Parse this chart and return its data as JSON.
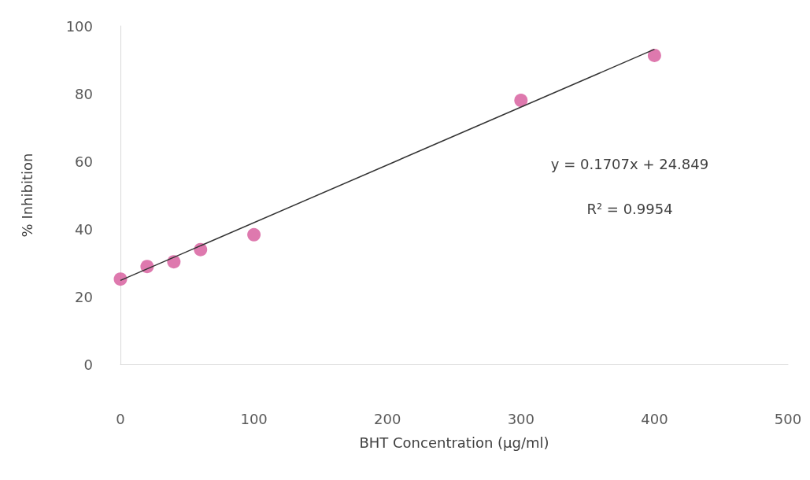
{
  "chart_data": {
    "type": "scatter",
    "xlabel": "BHT Concentration (µg/ml)",
    "ylabel": "% Inhibition",
    "annotations": [
      "y = 0.1707x + 24.849",
      "R² = 0.9954"
    ],
    "series": [
      {
        "color": "#d6589a",
        "x": [
          0,
          20,
          40,
          60,
          100,
          300,
          400
        ],
        "values": [
          25.2,
          28.9,
          30.3,
          33.9,
          38.3,
          78,
          91.3
        ],
        "marker": "circle"
      },
      {
        "type": "line",
        "color": "#333333",
        "x": [
          0,
          400
        ],
        "values": [
          24.8,
          93.1
        ],
        "marker": "none",
        "line_style": "solid"
      }
    ],
    "xlim": [
      0,
      500
    ],
    "xticks": [
      0,
      100,
      200,
      300,
      400,
      500
    ],
    "ylim": [
      0,
      100
    ],
    "yticks": [
      0,
      20,
      40,
      60,
      80,
      100
    ],
    "grid": false
  }
}
